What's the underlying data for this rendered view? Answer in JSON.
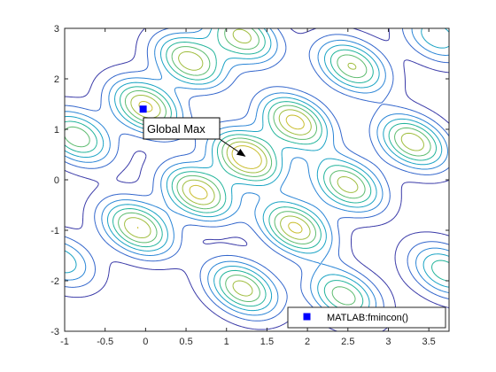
{
  "chart_data": {
    "type": "contour",
    "title": "",
    "xlabel": "",
    "ylabel": "",
    "xlim": [
      -1,
      3.75
    ],
    "ylim": [
      -3,
      3
    ],
    "xticks": [
      -1,
      -0.5,
      0,
      0.5,
      1,
      1.5,
      2,
      2.5,
      3,
      3.5
    ],
    "yticks": [
      -3,
      -2,
      -1,
      0,
      1,
      2,
      3
    ],
    "grid": false,
    "box": true,
    "contour_levels": 8,
    "colormap": [
      "#3a3aa8",
      "#3366cc",
      "#2a85d6",
      "#19a3c4",
      "#22b49a",
      "#5cbb6e",
      "#9fbd3e",
      "#c9bd2c"
    ],
    "peaks": [
      {
        "x": -0.85,
        "y": 0.85,
        "height": 0.72
      },
      {
        "x": 0.0,
        "y": 1.45,
        "height": 0.88
      },
      {
        "x": 0.55,
        "y": 2.35,
        "height": 0.82
      },
      {
        "x": 1.2,
        "y": 2.85,
        "height": 0.78
      },
      {
        "x": 1.25,
        "y": 0.45,
        "height": 1.0
      },
      {
        "x": 1.85,
        "y": 1.15,
        "height": 0.9
      },
      {
        "x": 2.55,
        "y": 2.25,
        "height": 0.75
      },
      {
        "x": 3.3,
        "y": 0.75,
        "height": 0.82
      },
      {
        "x": 0.65,
        "y": -0.25,
        "height": 0.9
      },
      {
        "x": -0.1,
        "y": -0.95,
        "height": 0.85
      },
      {
        "x": 1.85,
        "y": -0.95,
        "height": 0.88
      },
      {
        "x": 2.5,
        "y": -0.1,
        "height": 0.8
      },
      {
        "x": 1.2,
        "y": -2.15,
        "height": 0.8
      },
      {
        "x": 2.45,
        "y": -2.3,
        "height": 0.7
      },
      {
        "x": 3.7,
        "y": -1.8,
        "height": 0.6
      },
      {
        "x": -1.05,
        "y": -1.6,
        "height": 0.5
      },
      {
        "x": 3.6,
        "y": 2.85,
        "height": 0.5
      }
    ],
    "series": [
      {
        "name": "MATLAB:fmincon()",
        "marker": "square",
        "color": "#0000ff",
        "x": [
          -0.03
        ],
        "y": [
          1.4
        ]
      }
    ],
    "annotations": [
      {
        "text": "Global Max",
        "x": 1.25,
        "y": 0.45
      }
    ],
    "legend": {
      "location": "bottom-right",
      "entries": [
        "MATLAB:fmincon()"
      ]
    }
  }
}
